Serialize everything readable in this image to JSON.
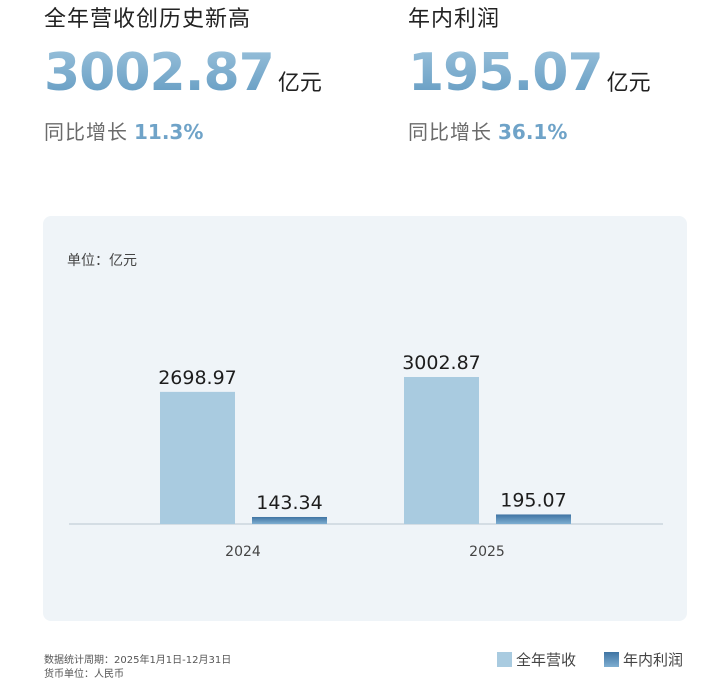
{
  "kpis": {
    "revenue": {
      "title": "全年营收创历史新高",
      "value": "3002.87",
      "unit": "亿元",
      "growth_label": "同比增长",
      "growth_value": "11.3%"
    },
    "profit": {
      "title": "年内利润",
      "value": "195.07",
      "unit": "亿元",
      "growth_label": "同比增长",
      "growth_value": "36.1%"
    }
  },
  "chart_data": {
    "type": "bar",
    "unit_label": "单位：亿元",
    "categories": [
      "2024",
      "2025"
    ],
    "series": [
      {
        "name": "全年营收",
        "values": [
          2698.97,
          3002.87
        ],
        "value_labels": [
          "2698.97",
          "3002.87"
        ],
        "color": "#a9cbe0"
      },
      {
        "name": "年内利润",
        "values": [
          143.34,
          195.07
        ],
        "value_labels": [
          "143.34",
          "195.07"
        ],
        "color": "#4b82b0"
      }
    ],
    "grid": false,
    "legend_position": "bottom-right"
  },
  "footer": {
    "period": "数据统计周期：2025年1月1日-12月31日",
    "currency": "货币单位：人民币"
  }
}
